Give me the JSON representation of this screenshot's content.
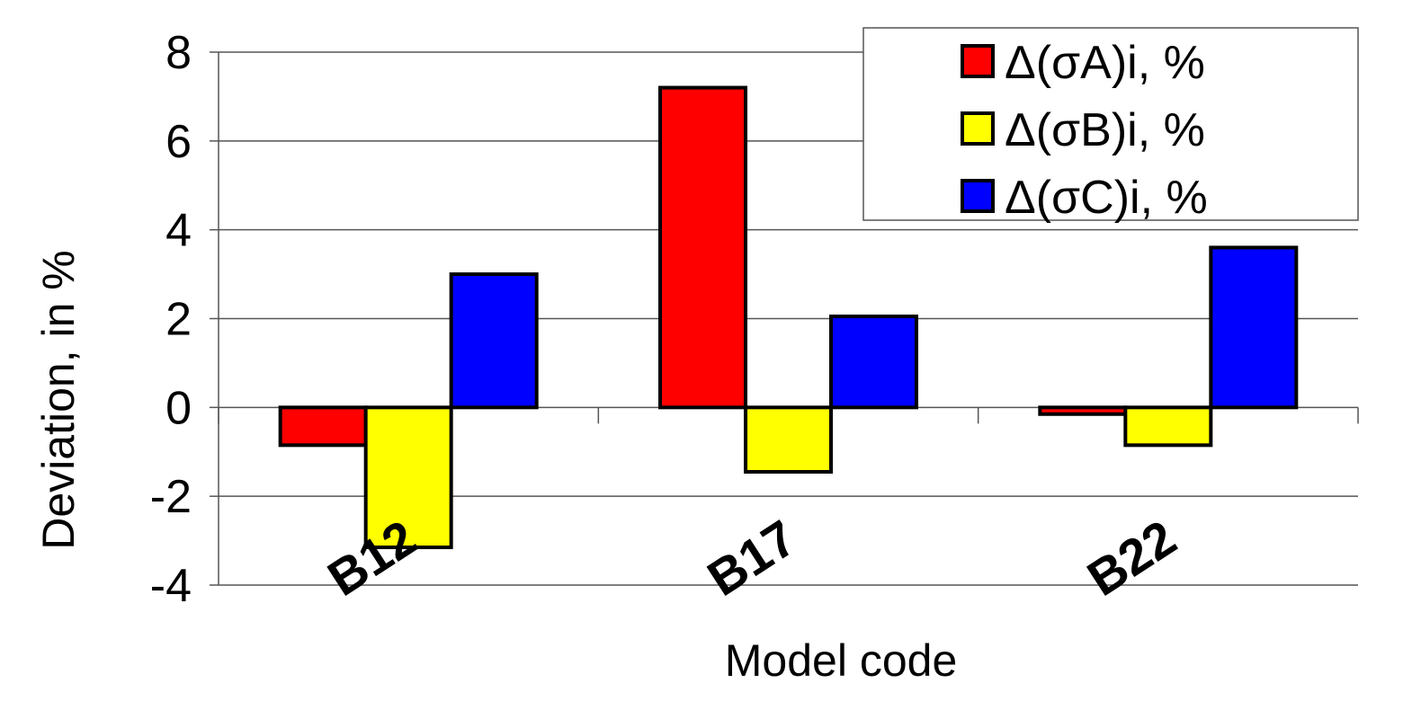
{
  "chart_data": {
    "type": "bar",
    "title": "",
    "xlabel": "Model code",
    "ylabel": "Deviation, in %",
    "ylim": [
      -4,
      8
    ],
    "yticks": [
      -4,
      -2,
      0,
      2,
      4,
      6,
      8
    ],
    "grid": true,
    "legend_position": "top-right",
    "categories": [
      "B12",
      "B17",
      "B22"
    ],
    "series": [
      {
        "name": "Δ(σA)i, %",
        "color": "#ff0000",
        "values": [
          -0.85,
          7.2,
          -0.15
        ]
      },
      {
        "name": "Δ(σB)i, %",
        "color": "#ffff00",
        "values": [
          -3.15,
          -1.45,
          -0.85
        ]
      },
      {
        "name": "Δ(σC)i, %",
        "color": "#0000ff",
        "values": [
          3.0,
          2.05,
          3.6
        ]
      }
    ]
  }
}
